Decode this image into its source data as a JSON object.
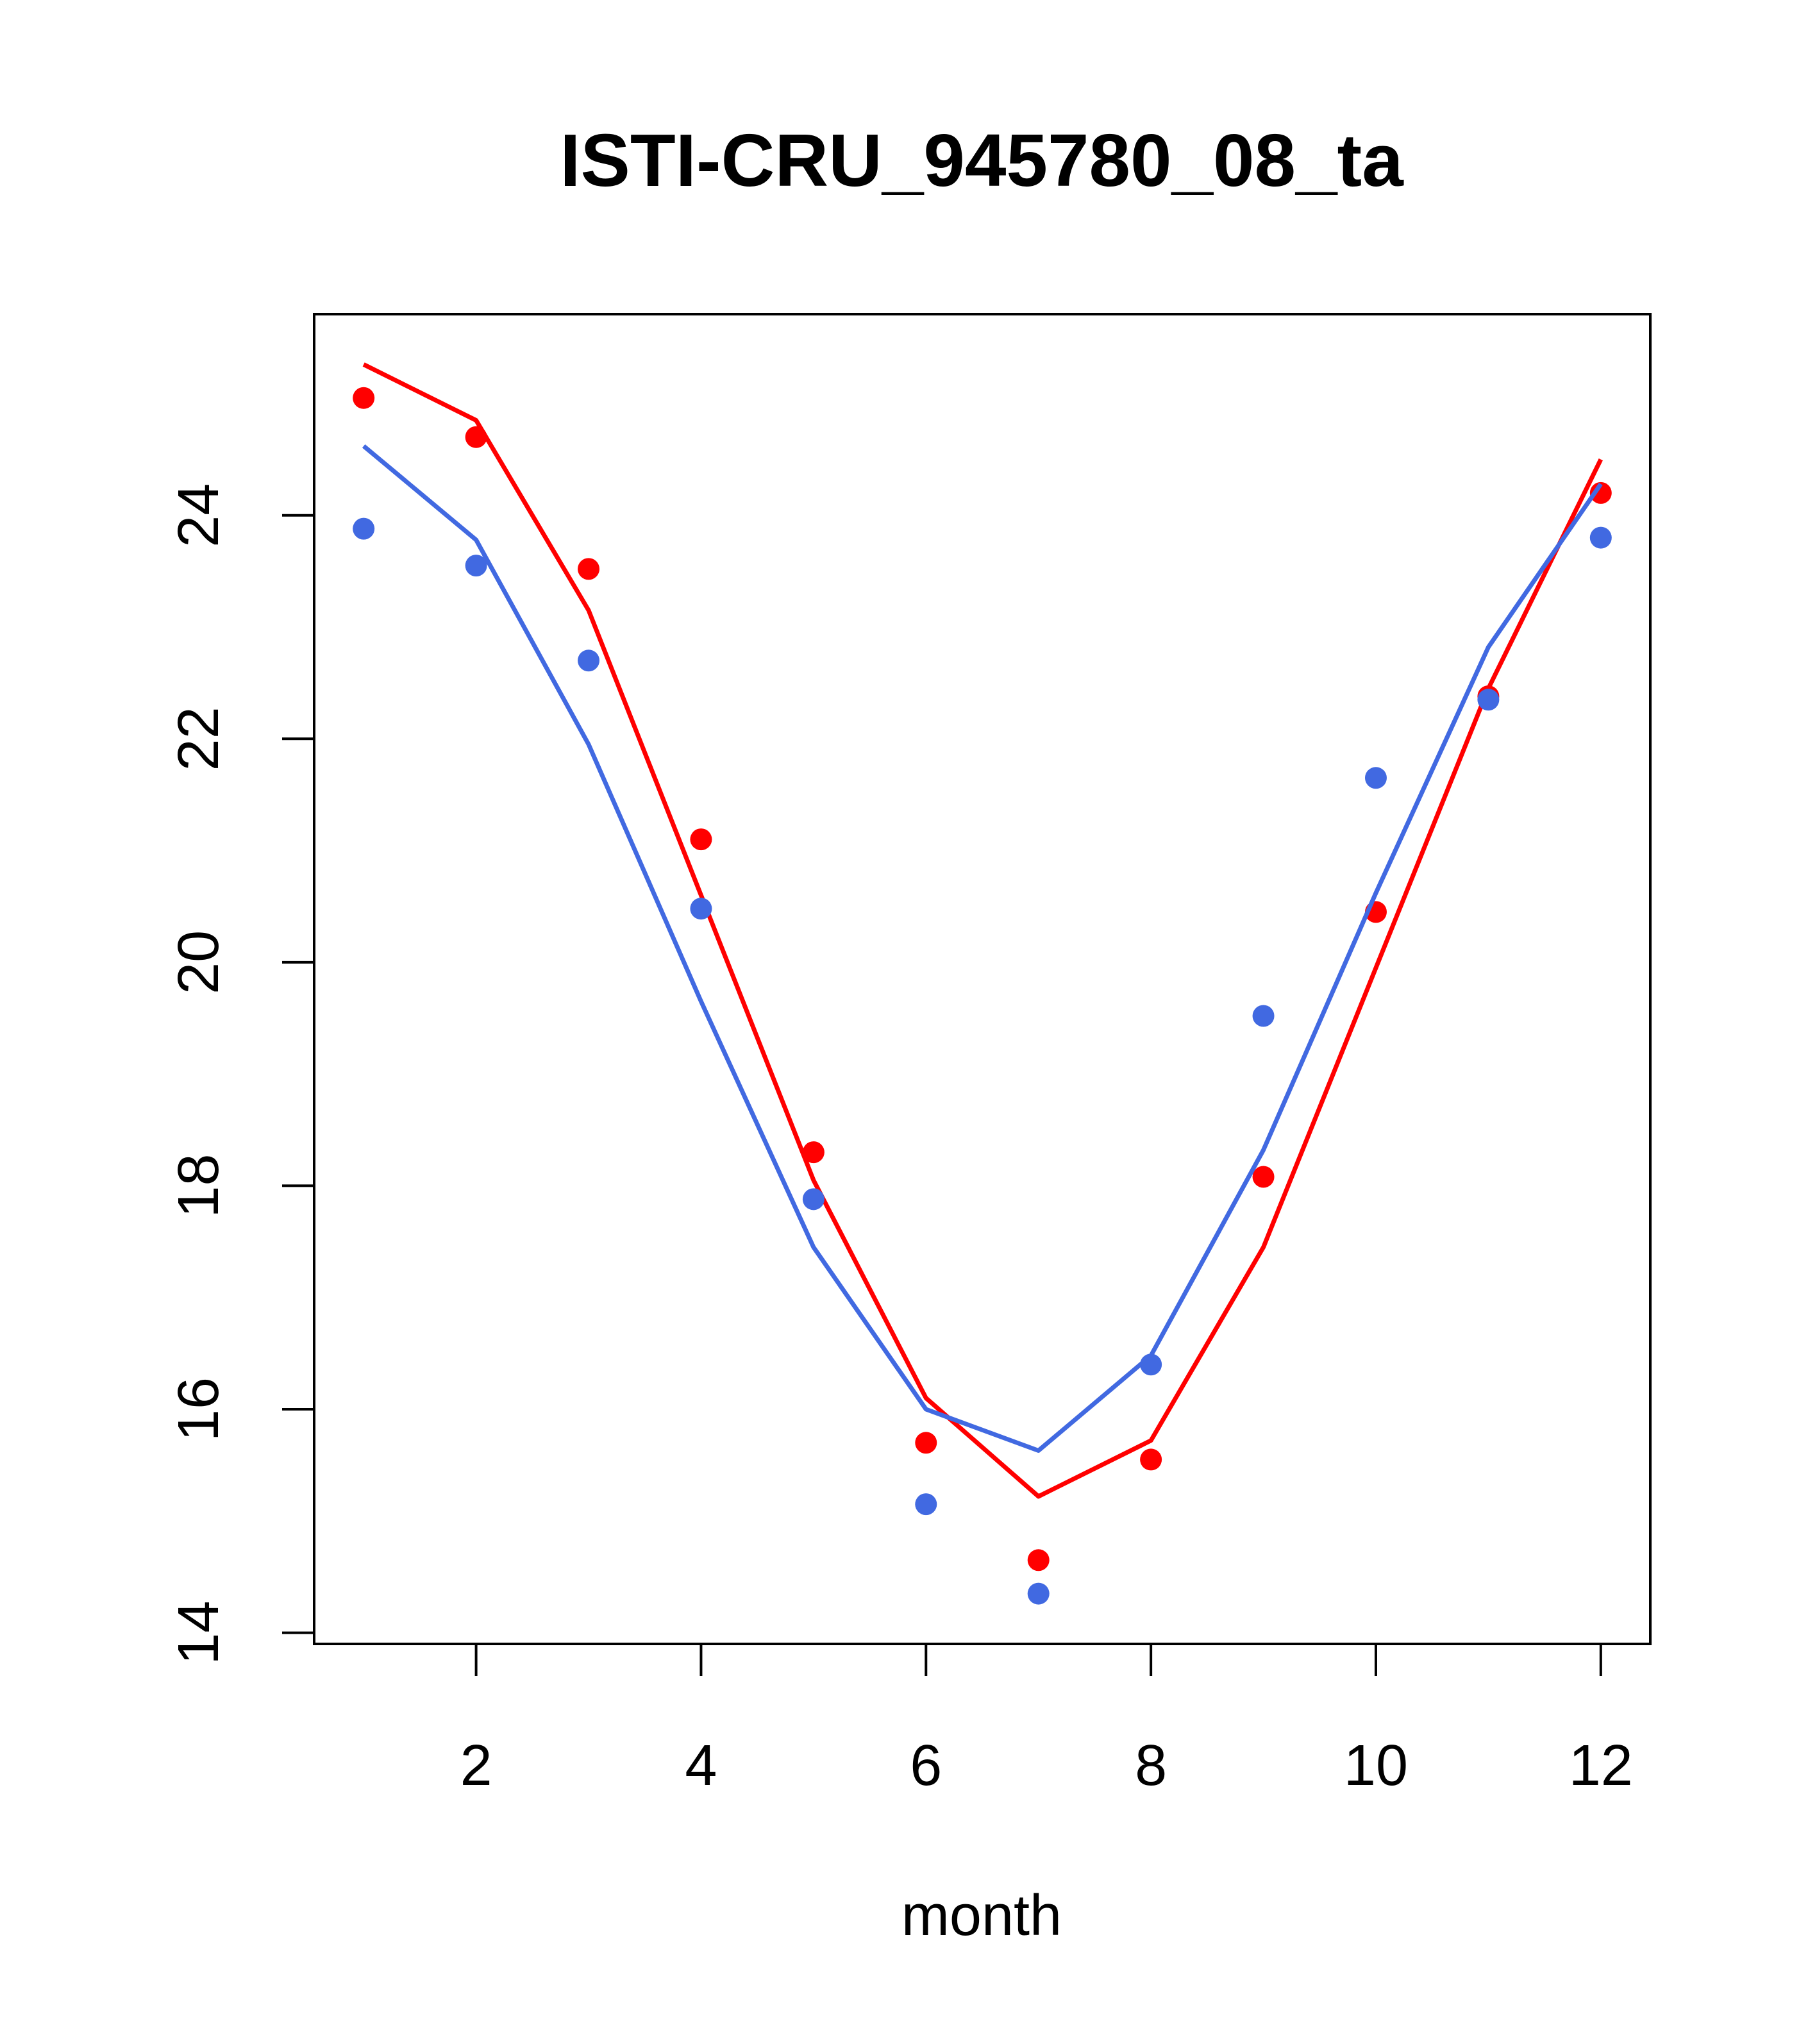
{
  "chart_data": {
    "type": "line",
    "title": "ISTI-CRU_945780_08_ta",
    "xlabel": "month",
    "ylabel": "",
    "xlim": [
      0.56,
      12.44
    ],
    "ylim": [
      13.9,
      25.8
    ],
    "x_ticks": [
      2,
      4,
      6,
      8,
      10,
      12
    ],
    "y_ticks": [
      14,
      16,
      18,
      20,
      22,
      24
    ],
    "grid": false,
    "legend": "none",
    "x": [
      1,
      2,
      3,
      4,
      5,
      6,
      7,
      8,
      9,
      10,
      11,
      12
    ],
    "series": [
      {
        "color": "#ff0000",
        "line": [
          25.35,
          24.85,
          23.15,
          20.6,
          18.05,
          16.1,
          15.22,
          15.72,
          17.45,
          19.95,
          22.45,
          24.5
        ],
        "points": [
          25.05,
          24.7,
          23.52,
          21.1,
          18.3,
          15.7,
          14.65,
          15.55,
          18.08,
          20.45,
          22.38,
          24.2
        ]
      },
      {
        "color": "#4169e1",
        "line": [
          24.62,
          23.78,
          21.95,
          19.65,
          17.45,
          16.0,
          15.63,
          16.48,
          18.32,
          20.62,
          22.82,
          24.28
        ],
        "points": [
          23.88,
          23.55,
          22.7,
          20.48,
          17.88,
          15.15,
          14.35,
          16.4,
          19.52,
          21.65,
          22.35,
          23.8
        ]
      }
    ]
  }
}
